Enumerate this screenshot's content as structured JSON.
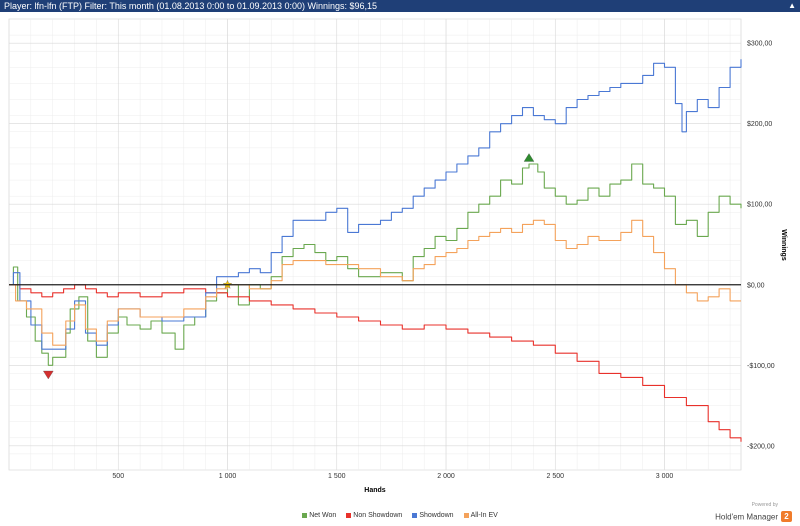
{
  "header": {
    "title": "Player: lfn-lfn (FTP) Filter: This month (01.08.2013 0:00 to 01.09.2013 0:00) Winnings: $96,15",
    "collapse_icon": "chevron-up-icon"
  },
  "branding": {
    "powered_by": "Powered by",
    "product": "Hold'em Manager",
    "badge": "2"
  },
  "chart_data": {
    "type": "line",
    "xlabel": "Hands",
    "ylabel": "Winnings",
    "xlim": [
      0,
      3350
    ],
    "ylim": [
      -230,
      330
    ],
    "x_ticks": [
      {
        "value": 500,
        "label": "500"
      },
      {
        "value": 1000,
        "label": "1 000"
      },
      {
        "value": 1500,
        "label": "1 500"
      },
      {
        "value": 2000,
        "label": "2 000"
      },
      {
        "value": 2500,
        "label": "2 500"
      },
      {
        "value": 3000,
        "label": "3 000"
      }
    ],
    "y_ticks": [
      {
        "value": 300,
        "label": "$300,00"
      },
      {
        "value": 200,
        "label": "$200,00"
      },
      {
        "value": 100,
        "label": "$100,00"
      },
      {
        "value": 0,
        "label": "$0,00"
      },
      {
        "value": -100,
        "label": "-$100,00"
      },
      {
        "value": -200,
        "label": "-$200,00"
      }
    ],
    "grid": true,
    "legend_position": "bottom",
    "series": [
      {
        "name": "Net Won",
        "color": "#6aa84f",
        "points": [
          [
            0,
            0
          ],
          [
            20,
            22
          ],
          [
            40,
            -20
          ],
          [
            80,
            -40
          ],
          [
            120,
            -70
          ],
          [
            150,
            -85
          ],
          [
            180,
            -100
          ],
          [
            200,
            -90
          ],
          [
            260,
            -60
          ],
          [
            280,
            -30
          ],
          [
            320,
            -15
          ],
          [
            360,
            -70
          ],
          [
            400,
            -90
          ],
          [
            450,
            -60
          ],
          [
            500,
            -40
          ],
          [
            540,
            -50
          ],
          [
            600,
            -55
          ],
          [
            650,
            -45
          ],
          [
            700,
            -60
          ],
          [
            760,
            -80
          ],
          [
            800,
            -50
          ],
          [
            850,
            -40
          ],
          [
            900,
            -20
          ],
          [
            950,
            -10
          ],
          [
            1000,
            0
          ],
          [
            1050,
            -25
          ],
          [
            1100,
            0
          ],
          [
            1150,
            -5
          ],
          [
            1200,
            10
          ],
          [
            1250,
            35
          ],
          [
            1300,
            45
          ],
          [
            1350,
            50
          ],
          [
            1400,
            40
          ],
          [
            1450,
            30
          ],
          [
            1500,
            35
          ],
          [
            1550,
            20
          ],
          [
            1600,
            10
          ],
          [
            1700,
            15
          ],
          [
            1800,
            5
          ],
          [
            1850,
            35
          ],
          [
            1900,
            45
          ],
          [
            1950,
            60
          ],
          [
            2000,
            55
          ],
          [
            2050,
            70
          ],
          [
            2100,
            90
          ],
          [
            2150,
            100
          ],
          [
            2200,
            110
          ],
          [
            2250,
            130
          ],
          [
            2300,
            125
          ],
          [
            2350,
            145
          ],
          [
            2380,
            150
          ],
          [
            2420,
            140
          ],
          [
            2450,
            120
          ],
          [
            2500,
            110
          ],
          [
            2550,
            100
          ],
          [
            2600,
            105
          ],
          [
            2650,
            120
          ],
          [
            2700,
            110
          ],
          [
            2750,
            125
          ],
          [
            2800,
            130
          ],
          [
            2850,
            150
          ],
          [
            2900,
            125
          ],
          [
            2950,
            120
          ],
          [
            3000,
            110
          ],
          [
            3050,
            75
          ],
          [
            3100,
            80
          ],
          [
            3150,
            60
          ],
          [
            3200,
            90
          ],
          [
            3250,
            110
          ],
          [
            3300,
            100
          ],
          [
            3350,
            95
          ]
        ]
      },
      {
        "name": "Non Showdown",
        "color": "#e8312b",
        "points": [
          [
            0,
            0
          ],
          [
            50,
            -5
          ],
          [
            100,
            -10
          ],
          [
            150,
            -15
          ],
          [
            200,
            -10
          ],
          [
            250,
            -5
          ],
          [
            300,
            0
          ],
          [
            350,
            -5
          ],
          [
            400,
            -10
          ],
          [
            450,
            -15
          ],
          [
            500,
            -10
          ],
          [
            600,
            -15
          ],
          [
            700,
            -10
          ],
          [
            800,
            -5
          ],
          [
            900,
            -10
          ],
          [
            1000,
            -15
          ],
          [
            1100,
            -20
          ],
          [
            1200,
            -25
          ],
          [
            1300,
            -30
          ],
          [
            1400,
            -35
          ],
          [
            1500,
            -40
          ],
          [
            1600,
            -45
          ],
          [
            1700,
            -50
          ],
          [
            1800,
            -55
          ],
          [
            1900,
            -50
          ],
          [
            2000,
            -55
          ],
          [
            2100,
            -60
          ],
          [
            2200,
            -65
          ],
          [
            2300,
            -70
          ],
          [
            2400,
            -75
          ],
          [
            2500,
            -85
          ],
          [
            2600,
            -95
          ],
          [
            2700,
            -110
          ],
          [
            2800,
            -115
          ],
          [
            2900,
            -125
          ],
          [
            3000,
            -140
          ],
          [
            3100,
            -150
          ],
          [
            3200,
            -170
          ],
          [
            3250,
            -180
          ],
          [
            3300,
            -190
          ],
          [
            3350,
            -195
          ]
        ]
      },
      {
        "name": "Showdown",
        "color": "#4a78d4",
        "points": [
          [
            0,
            0
          ],
          [
            20,
            15
          ],
          [
            50,
            -20
          ],
          [
            100,
            -50
          ],
          [
            150,
            -80
          ],
          [
            200,
            -80
          ],
          [
            260,
            -55
          ],
          [
            300,
            -20
          ],
          [
            350,
            -60
          ],
          [
            400,
            -75
          ],
          [
            450,
            -50
          ],
          [
            500,
            -30
          ],
          [
            600,
            -40
          ],
          [
            700,
            -45
          ],
          [
            800,
            -40
          ],
          [
            900,
            -10
          ],
          [
            950,
            10
          ],
          [
            1000,
            10
          ],
          [
            1050,
            15
          ],
          [
            1100,
            20
          ],
          [
            1150,
            15
          ],
          [
            1200,
            40
          ],
          [
            1250,
            60
          ],
          [
            1300,
            80
          ],
          [
            1350,
            80
          ],
          [
            1400,
            80
          ],
          [
            1450,
            90
          ],
          [
            1500,
            95
          ],
          [
            1550,
            65
          ],
          [
            1600,
            75
          ],
          [
            1700,
            80
          ],
          [
            1750,
            90
          ],
          [
            1800,
            95
          ],
          [
            1850,
            110
          ],
          [
            1900,
            120
          ],
          [
            1950,
            130
          ],
          [
            2000,
            140
          ],
          [
            2050,
            150
          ],
          [
            2100,
            160
          ],
          [
            2150,
            170
          ],
          [
            2200,
            190
          ],
          [
            2250,
            200
          ],
          [
            2300,
            210
          ],
          [
            2350,
            220
          ],
          [
            2400,
            210
          ],
          [
            2450,
            205
          ],
          [
            2500,
            200
          ],
          [
            2550,
            220
          ],
          [
            2600,
            230
          ],
          [
            2650,
            235
          ],
          [
            2700,
            240
          ],
          [
            2750,
            245
          ],
          [
            2800,
            250
          ],
          [
            2850,
            250
          ],
          [
            2900,
            260
          ],
          [
            2950,
            275
          ],
          [
            3000,
            270
          ],
          [
            3050,
            225
          ],
          [
            3080,
            190
          ],
          [
            3100,
            215
          ],
          [
            3150,
            230
          ],
          [
            3200,
            220
          ],
          [
            3250,
            245
          ],
          [
            3300,
            270
          ],
          [
            3350,
            280
          ]
        ]
      },
      {
        "name": "All-In EV",
        "color": "#f4a25b",
        "points": [
          [
            0,
            0
          ],
          [
            30,
            -20
          ],
          [
            80,
            -30
          ],
          [
            150,
            -60
          ],
          [
            200,
            -75
          ],
          [
            260,
            -45
          ],
          [
            300,
            -25
          ],
          [
            350,
            -55
          ],
          [
            400,
            -70
          ],
          [
            450,
            -45
          ],
          [
            500,
            -30
          ],
          [
            600,
            -40
          ],
          [
            700,
            -40
          ],
          [
            800,
            -30
          ],
          [
            900,
            -15
          ],
          [
            950,
            -5
          ],
          [
            1000,
            0
          ],
          [
            1100,
            -5
          ],
          [
            1200,
            5
          ],
          [
            1250,
            25
          ],
          [
            1300,
            30
          ],
          [
            1400,
            30
          ],
          [
            1450,
            25
          ],
          [
            1500,
            25
          ],
          [
            1600,
            20
          ],
          [
            1700,
            10
          ],
          [
            1800,
            5
          ],
          [
            1850,
            20
          ],
          [
            1900,
            25
          ],
          [
            1950,
            35
          ],
          [
            2000,
            40
          ],
          [
            2050,
            45
          ],
          [
            2100,
            55
          ],
          [
            2150,
            60
          ],
          [
            2200,
            65
          ],
          [
            2250,
            70
          ],
          [
            2300,
            65
          ],
          [
            2350,
            75
          ],
          [
            2400,
            80
          ],
          [
            2450,
            75
          ],
          [
            2500,
            55
          ],
          [
            2550,
            45
          ],
          [
            2600,
            50
          ],
          [
            2650,
            60
          ],
          [
            2700,
            55
          ],
          [
            2750,
            55
          ],
          [
            2800,
            65
          ],
          [
            2850,
            80
          ],
          [
            2900,
            60
          ],
          [
            2950,
            40
          ],
          [
            3000,
            20
          ],
          [
            3050,
            0
          ],
          [
            3100,
            -10
          ],
          [
            3150,
            -20
          ],
          [
            3200,
            -15
          ],
          [
            3250,
            -5
          ],
          [
            3300,
            -20
          ],
          [
            3350,
            -20
          ]
        ]
      }
    ],
    "markers": [
      {
        "shape": "triangle-down",
        "color": "#d32f2f",
        "x": 180,
        "y": -112
      },
      {
        "shape": "triangle-up",
        "color": "#2e8b2e",
        "x": 2380,
        "y": 158
      },
      {
        "shape": "star",
        "color": "#f2c200",
        "x": 1000,
        "y": 0
      }
    ]
  }
}
